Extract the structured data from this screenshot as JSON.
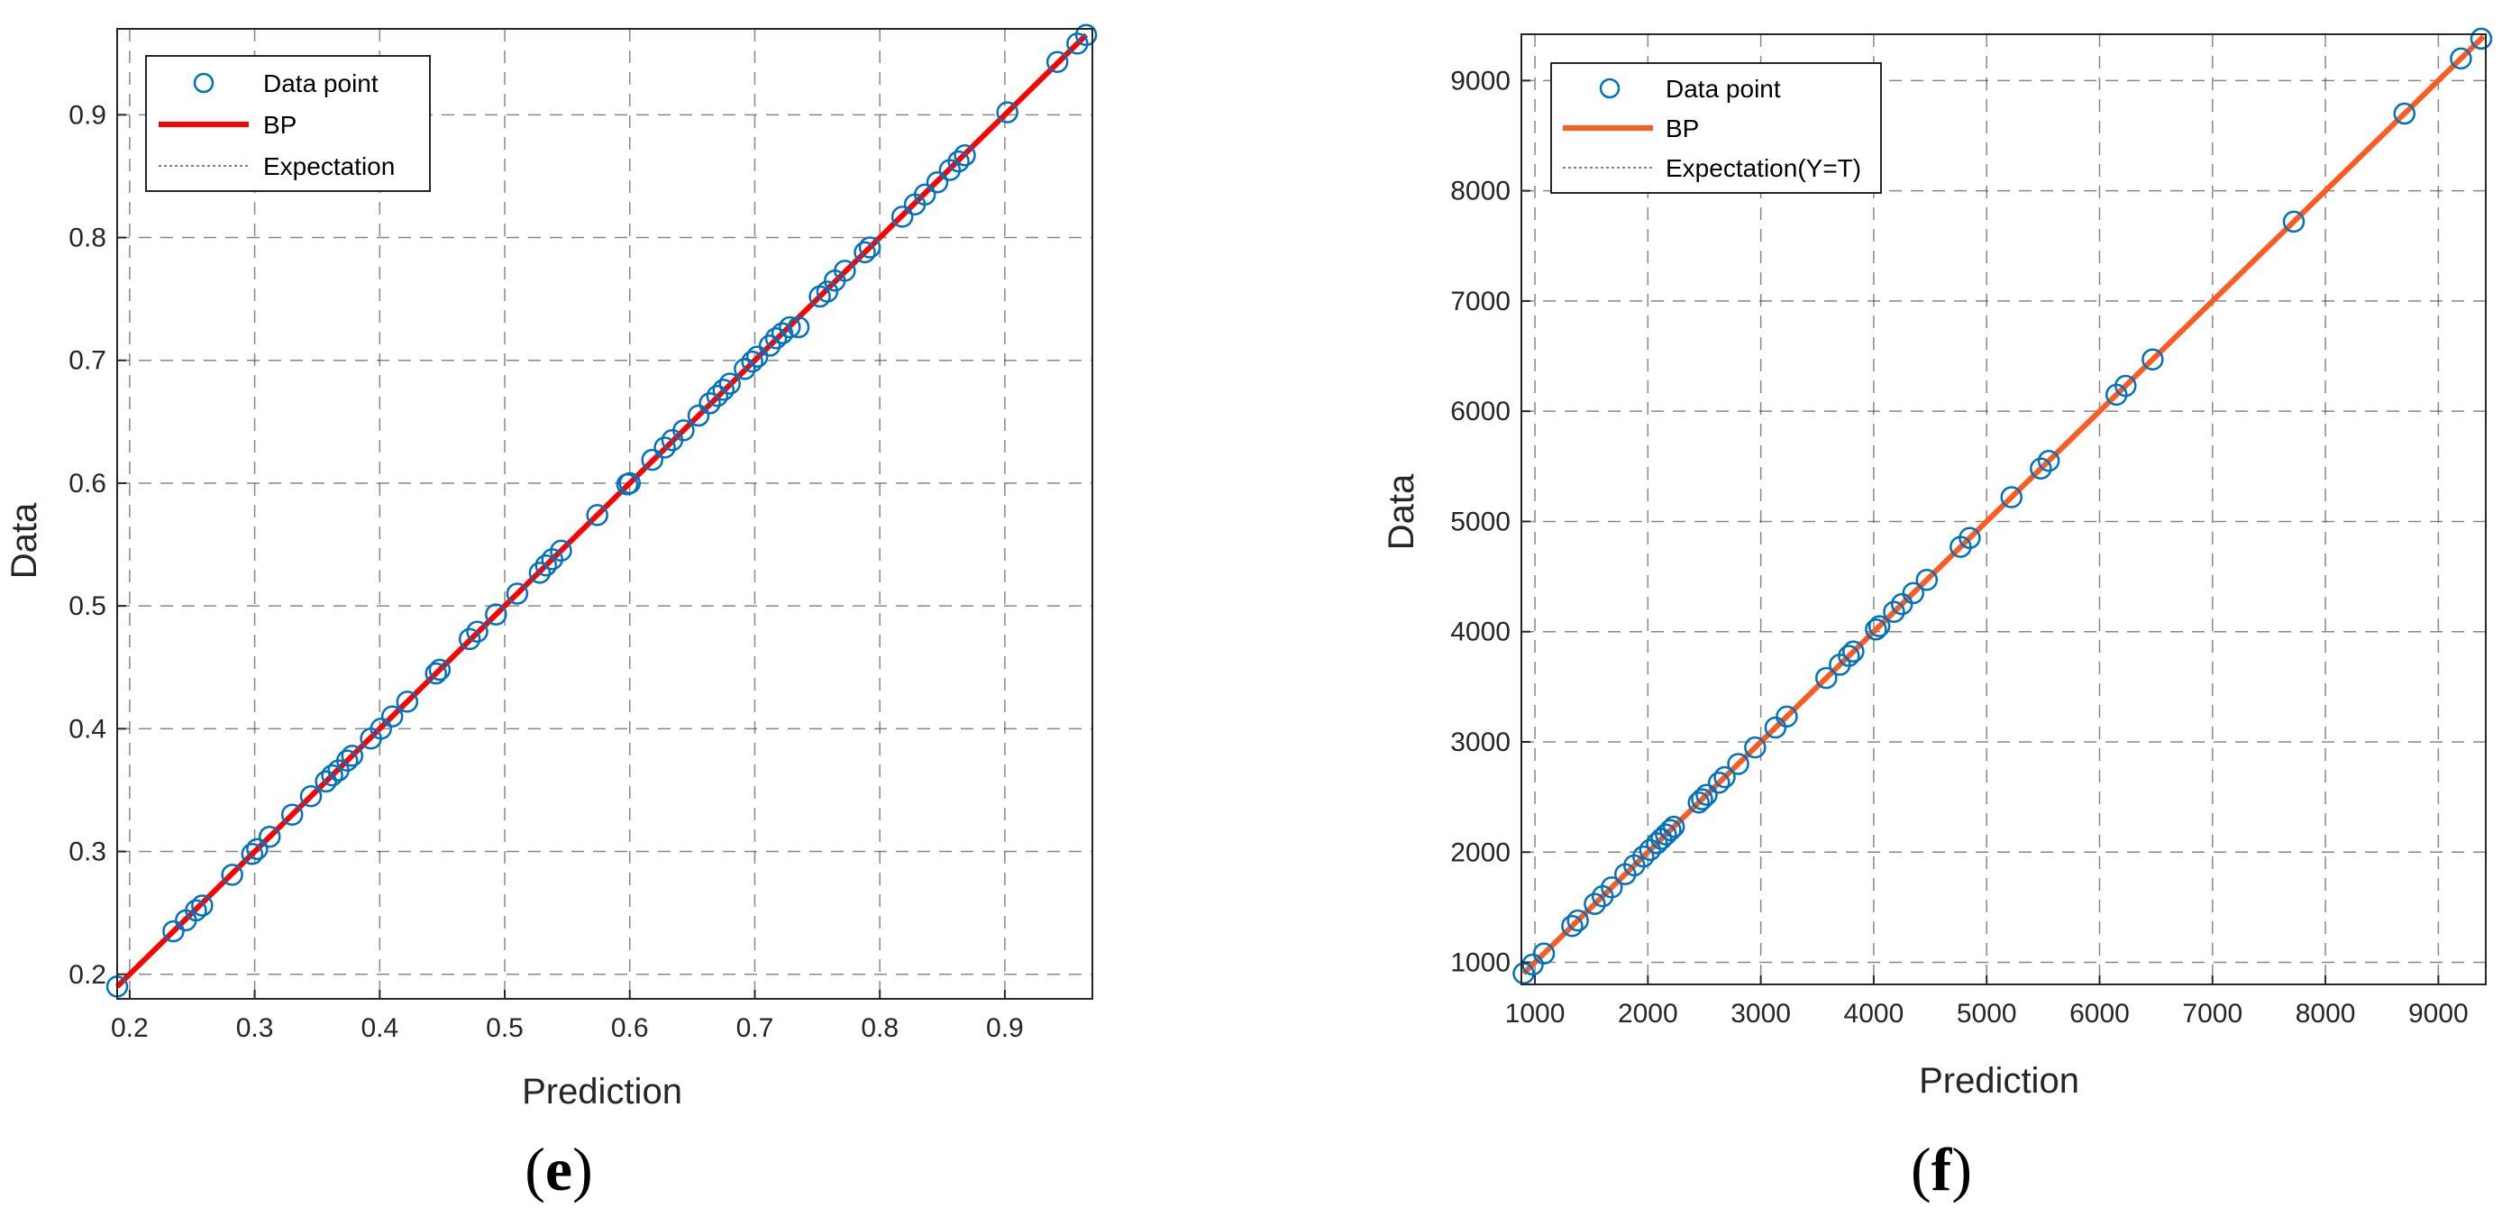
{
  "chart_data": [
    {
      "type": "scatter",
      "panel_label": {
        "open": "(",
        "letter": "e",
        "close": ")"
      },
      "xlabel": "Prediction",
      "ylabel": "Data",
      "xlim": [
        0.19,
        0.97
      ],
      "ylim": [
        0.18,
        0.97
      ],
      "xticks": [
        0.2,
        0.3,
        0.4,
        0.5,
        0.6,
        0.7,
        0.8,
        0.9
      ],
      "yticks": [
        0.2,
        0.3,
        0.4,
        0.5,
        0.6,
        0.7,
        0.8,
        0.9
      ],
      "tick_labels_x": [
        "0.2",
        "0.3",
        "0.4",
        "0.5",
        "0.6",
        "0.7",
        "0.8",
        "0.9"
      ],
      "tick_labels_y": [
        "0.2",
        "0.3",
        "0.4",
        "0.5",
        "0.6",
        "0.7",
        "0.8",
        "0.9"
      ],
      "grid": true,
      "legend_position": "top-left",
      "colors": {
        "points": "#0072BD",
        "fit": "#FF0000",
        "expectation": "#808080"
      },
      "legend": [
        "Data point",
        "BP",
        "Expectation"
      ],
      "series": [
        {
          "name": "Data point",
          "kind": "scatter",
          "x": [
            0.19,
            0.235,
            0.245,
            0.253,
            0.258,
            0.282,
            0.298,
            0.302,
            0.312,
            0.33,
            0.345,
            0.357,
            0.362,
            0.367,
            0.374,
            0.378,
            0.393,
            0.401,
            0.41,
            0.422,
            0.445,
            0.448,
            0.472,
            0.478,
            0.493,
            0.51,
            0.528,
            0.533,
            0.538,
            0.545,
            0.574,
            0.598,
            0.6,
            0.618,
            0.628,
            0.634,
            0.643,
            0.655,
            0.664,
            0.67,
            0.675,
            0.68,
            0.692,
            0.698,
            0.702,
            0.712,
            0.717,
            0.722,
            0.728,
            0.735,
            0.752,
            0.758,
            0.764,
            0.772,
            0.788,
            0.792,
            0.818,
            0.828,
            0.836,
            0.846,
            0.856,
            0.863,
            0.868,
            0.902,
            0.942,
            0.958,
            0.965
          ],
          "y": [
            0.19,
            0.235,
            0.244,
            0.252,
            0.256,
            0.281,
            0.298,
            0.302,
            0.312,
            0.33,
            0.345,
            0.357,
            0.362,
            0.366,
            0.374,
            0.378,
            0.392,
            0.4,
            0.41,
            0.422,
            0.445,
            0.448,
            0.473,
            0.479,
            0.493,
            0.51,
            0.527,
            0.533,
            0.538,
            0.545,
            0.574,
            0.599,
            0.6,
            0.619,
            0.629,
            0.635,
            0.643,
            0.655,
            0.665,
            0.671,
            0.676,
            0.681,
            0.693,
            0.699,
            0.703,
            0.712,
            0.718,
            0.722,
            0.727,
            0.727,
            0.752,
            0.756,
            0.765,
            0.773,
            0.788,
            0.792,
            0.817,
            0.827,
            0.835,
            0.845,
            0.855,
            0.862,
            0.867,
            0.902,
            0.943,
            0.958,
            0.965
          ]
        },
        {
          "name": "BP",
          "kind": "line",
          "x": [
            0.19,
            0.965
          ],
          "y": [
            0.19,
            0.965
          ]
        },
        {
          "name": "Expectation",
          "kind": "line",
          "x": [
            0.19,
            0.965
          ],
          "y": [
            0.19,
            0.965
          ]
        }
      ]
    },
    {
      "type": "scatter",
      "panel_label": {
        "open": "(",
        "letter": "f",
        "close": ")"
      },
      "xlabel": "Prediction",
      "ylabel": "Data",
      "xlim": [
        880,
        9420
      ],
      "ylim": [
        800,
        9420
      ],
      "xticks": [
        1000,
        2000,
        3000,
        4000,
        5000,
        6000,
        7000,
        8000,
        9000
      ],
      "yticks": [
        1000,
        2000,
        3000,
        4000,
        5000,
        6000,
        7000,
        8000,
        9000
      ],
      "tick_labels_x": [
        "1000",
        "2000",
        "3000",
        "4000",
        "5000",
        "6000",
        "7000",
        "8000",
        "9000"
      ],
      "tick_labels_y": [
        "1000",
        "2000",
        "3000",
        "4000",
        "5000",
        "6000",
        "7000",
        "8000",
        "9000"
      ],
      "grid": true,
      "legend_position": "top-left",
      "colors": {
        "points": "#0072BD",
        "fit": "#FF5A1F",
        "expectation": "#808080"
      },
      "legend": [
        "Data point",
        "BP",
        "Expectation(Y=T)"
      ],
      "series": [
        {
          "name": "Data point",
          "kind": "scatter",
          "x": [
            900,
            980,
            1080,
            1330,
            1380,
            1530,
            1600,
            1680,
            1800,
            1880,
            1960,
            2020,
            2080,
            2120,
            2160,
            2200,
            2230,
            2450,
            2480,
            2520,
            2630,
            2680,
            2800,
            2950,
            3130,
            3230,
            3580,
            3700,
            3780,
            3820,
            4020,
            4050,
            4180,
            4250,
            4350,
            4470,
            4770,
            4850,
            5220,
            5480,
            5550,
            6150,
            6230,
            6470,
            7720,
            8700,
            9200,
            9380
          ],
          "y": [
            900,
            980,
            1080,
            1330,
            1380,
            1530,
            1600,
            1680,
            1800,
            1880,
            1960,
            2020,
            2080,
            2120,
            2160,
            2200,
            2230,
            2450,
            2480,
            2520,
            2630,
            2680,
            2800,
            2950,
            3130,
            3230,
            3580,
            3700,
            3780,
            3820,
            4020,
            4050,
            4180,
            4250,
            4350,
            4470,
            4770,
            4850,
            5220,
            5480,
            5550,
            6150,
            6230,
            6470,
            7720,
            8700,
            9200,
            9380
          ]
        },
        {
          "name": "BP",
          "kind": "line",
          "x": [
            900,
            9400
          ],
          "y": [
            900,
            9400
          ]
        },
        {
          "name": "Expectation(Y=T)",
          "kind": "line",
          "x": [
            900,
            9400
          ],
          "y": [
            900,
            9400
          ]
        }
      ]
    }
  ]
}
